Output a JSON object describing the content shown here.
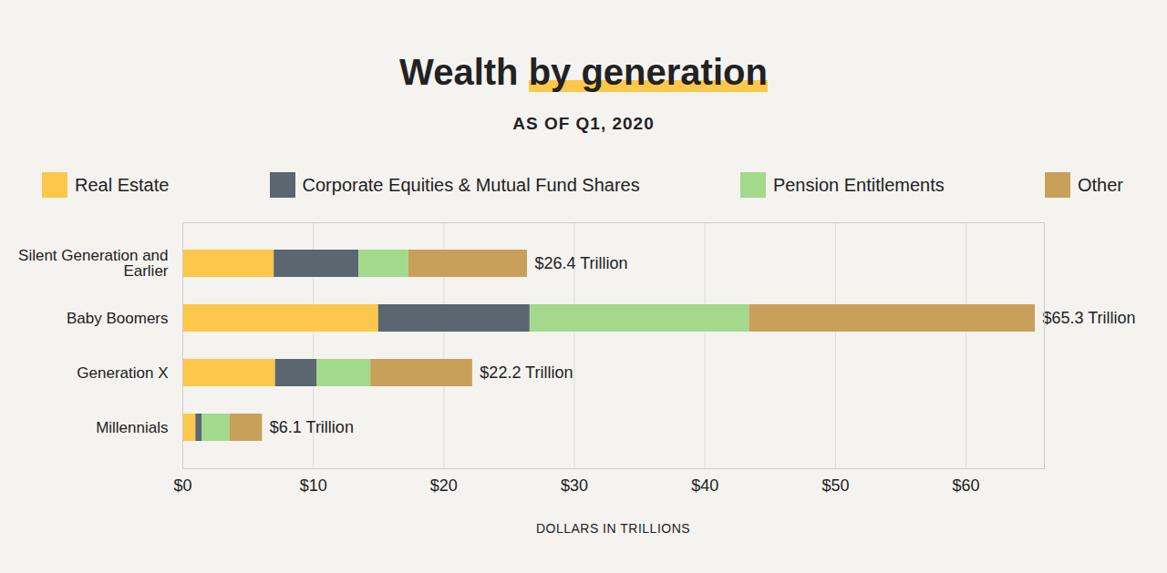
{
  "chart_data": {
    "type": "bar",
    "title": "Wealth by generation",
    "subtitle": "AS OF Q1, 2020",
    "orientation": "horizontal",
    "stacked": true,
    "grid": true,
    "legend": "top",
    "xlabel": "DOLLARS IN TRILLIONS",
    "categories": [
      "Silent Generation and Earlier",
      "Baby Boomers",
      "Generation X",
      "Millennials"
    ],
    "series": [
      {
        "name": "Real Estate",
        "color": "#fcc74a",
        "values": [
          7.0,
          15.0,
          7.1,
          1.0
        ]
      },
      {
        "name": "Corporate Equities & Mutual Fund Shares",
        "color": "#5a6670",
        "values": [
          6.5,
          11.6,
          3.2,
          0.5
        ]
      },
      {
        "name": "Pension Entitlements",
        "color": "#a3d98a",
        "values": [
          3.8,
          16.8,
          4.1,
          2.1
        ]
      },
      {
        "name": "Other",
        "color": "#c9a05a",
        "values": [
          9.1,
          21.9,
          7.8,
          2.5
        ]
      }
    ],
    "totals": [
      26.4,
      65.3,
      22.2,
      6.1
    ],
    "total_labels": [
      "$26.4 Trillion",
      "$65.3 Trillion",
      "$22.2 Trillion",
      "$6.1 Trillion"
    ],
    "xlim": [
      0,
      66
    ],
    "xticks": [
      {
        "value": 0,
        "label": "$0"
      },
      {
        "value": 10,
        "label": "$10"
      },
      {
        "value": 20,
        "label": "$20"
      },
      {
        "value": 30,
        "label": "$30"
      },
      {
        "value": 40,
        "label": "$40"
      },
      {
        "value": 50,
        "label": "$50"
      },
      {
        "value": 60,
        "label": "$60"
      }
    ]
  }
}
